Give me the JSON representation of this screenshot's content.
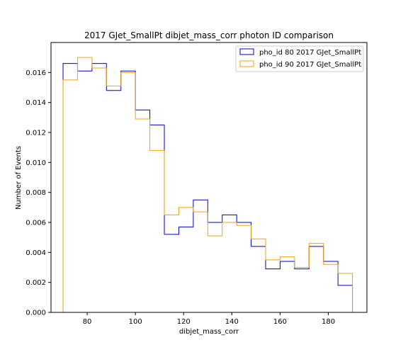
{
  "chart_data": {
    "type": "line",
    "style": "step-histogram",
    "title": "2017 GJet_SmallPt dibjet_mass_corr photon ID comparison",
    "xlabel": "dibjet_mass_corr",
    "ylabel": "Number of Events",
    "xlim": [
      65,
      196
    ],
    "ylim": [
      0,
      0.018
    ],
    "xticks": [
      80,
      100,
      120,
      140,
      160,
      180
    ],
    "yticks": [
      0.0,
      0.002,
      0.004,
      0.006,
      0.008,
      0.01,
      0.012,
      0.014,
      0.016
    ],
    "ytick_labels": [
      "0.000",
      "0.002",
      "0.004",
      "0.006",
      "0.008",
      "0.010",
      "0.012",
      "0.014",
      "0.016"
    ],
    "grid": false,
    "legend_position": "top-right",
    "bin_edges": [
      70,
      76,
      82,
      88,
      94,
      100,
      106,
      112,
      118,
      124,
      130,
      136,
      142,
      148,
      154,
      160,
      166,
      172,
      178,
      184,
      190
    ],
    "series": [
      {
        "name": "pho_id 80 2017 GJet_SmallPt",
        "color": "#0000cc",
        "values": [
          0.0166,
          0.0161,
          0.0166,
          0.0148,
          0.0161,
          0.0135,
          0.0125,
          0.0052,
          0.0057,
          0.0075,
          0.006,
          0.0065,
          0.006,
          0.0044,
          0.0029,
          0.0034,
          0.0029,
          0.0044,
          0.0034,
          0.0018
        ]
      },
      {
        "name": "pho_id 90 2017 GJet_SmallPt",
        "color": "#f0a30a",
        "values": [
          0.0155,
          0.017,
          0.0163,
          0.0151,
          0.016,
          0.0129,
          0.0108,
          0.0065,
          0.007,
          0.0067,
          0.0051,
          0.006,
          0.0058,
          0.0049,
          0.0035,
          0.0037,
          0.003,
          0.0046,
          0.0032,
          0.0026
        ]
      }
    ]
  }
}
